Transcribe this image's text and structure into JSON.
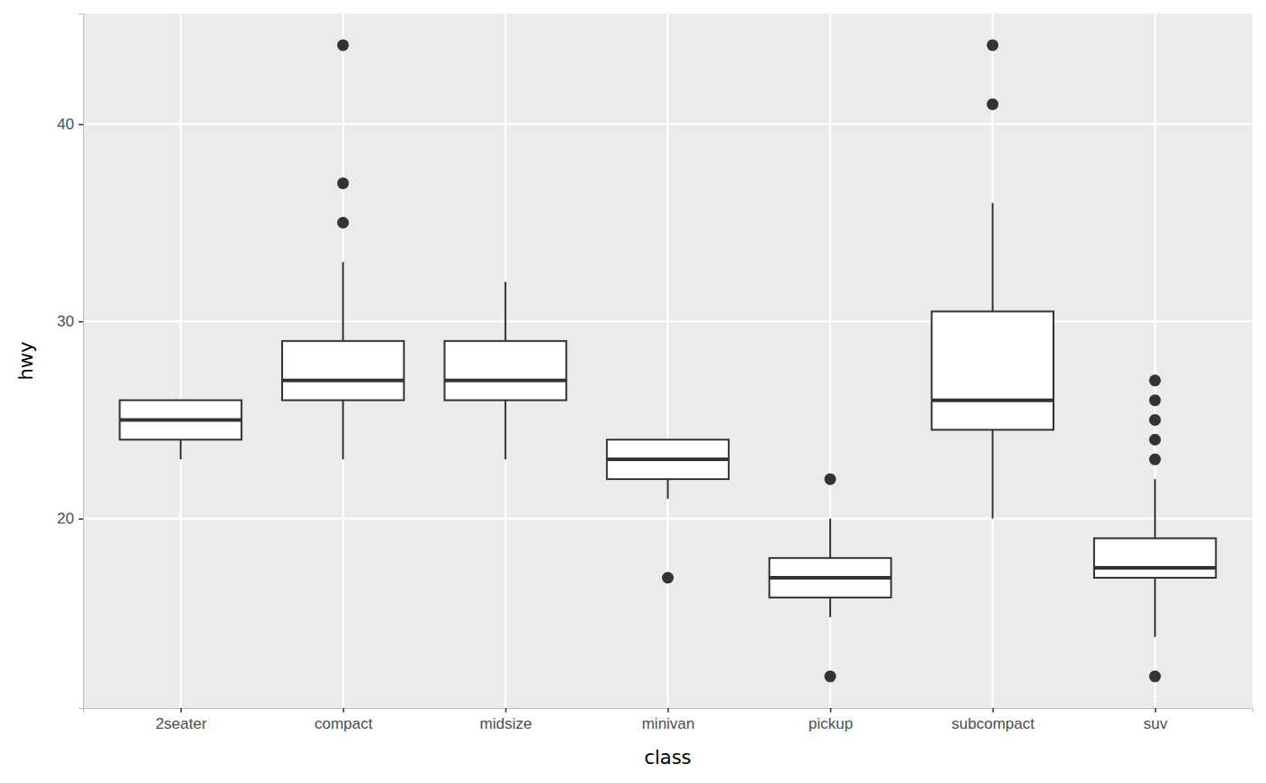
{
  "chart_data": {
    "type": "box",
    "x_label": "class",
    "y_label": "hwy",
    "categories": [
      "2seater",
      "compact",
      "midsize",
      "minivan",
      "pickup",
      "subcompact",
      "suv"
    ],
    "stats": [
      {
        "low": 23,
        "q1": 24,
        "median": 25,
        "q3": 26,
        "high": 26,
        "outliers": []
      },
      {
        "low": 23,
        "q1": 26,
        "median": 27,
        "q3": 29,
        "high": 33,
        "outliers": [
          35,
          37,
          44
        ]
      },
      {
        "low": 23,
        "q1": 26,
        "median": 27,
        "q3": 29,
        "high": 32,
        "outliers": []
      },
      {
        "low": 21,
        "q1": 22,
        "median": 23,
        "q3": 24,
        "high": 24,
        "outliers": [
          17
        ]
      },
      {
        "low": 15,
        "q1": 16,
        "median": 17,
        "q3": 18,
        "high": 20,
        "outliers": [
          12,
          22
        ]
      },
      {
        "low": 20,
        "q1": 24.5,
        "median": 26,
        "q3": 30.5,
        "high": 36,
        "outliers": [
          41,
          44
        ]
      },
      {
        "low": 14,
        "q1": 17,
        "median": 17.5,
        "q3": 19,
        "high": 22,
        "outliers": [
          12,
          23,
          24,
          25,
          26,
          27
        ]
      }
    ],
    "ylim": [
      10.4,
      45.6
    ],
    "yticks": [
      20,
      30,
      40
    ],
    "grid": true
  }
}
